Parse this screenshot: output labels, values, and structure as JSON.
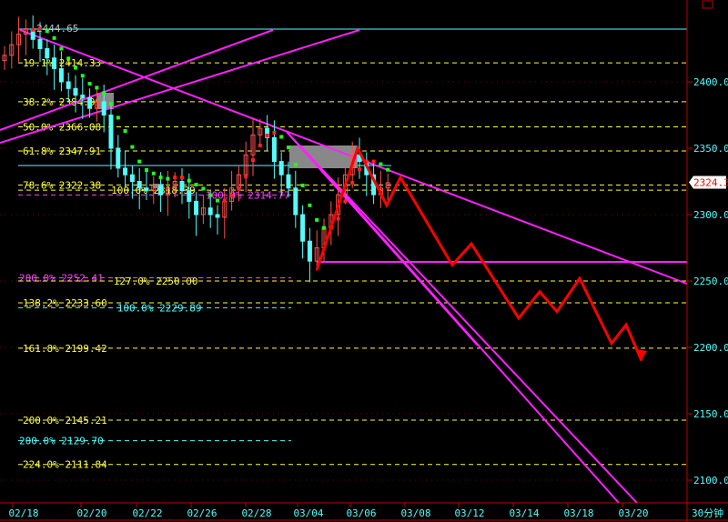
{
  "chart_data": {
    "type": "candlestick",
    "timeframe_label": "30分钟",
    "x_tick_labels": [
      "02/18",
      "02/20",
      "02/22",
      "02/26",
      "02/28",
      "03/04",
      "03/06",
      "03/08",
      "03/12",
      "03/14",
      "03/18",
      "03/20"
    ],
    "y_tick_labels": [
      "2400.0",
      "2350.0",
      "2300.0",
      "2250.0",
      "2200.0",
      "2150.0",
      "2100.0"
    ],
    "ylim": [
      2085,
      2460
    ],
    "current_price": "2324.3",
    "top_high_label": "2444.65",
    "closes": [
      2420,
      2428,
      2436,
      2440,
      2432,
      2425,
      2418,
      2410,
      2400,
      2395,
      2390,
      2388,
      2380,
      2385,
      2375,
      2350,
      2335,
      2330,
      2325,
      2320,
      2318,
      2322,
      2315,
      2320,
      2325,
      2318,
      2310,
      2300,
      2305,
      2300,
      2298,
      2310,
      2320,
      2330,
      2345,
      2360,
      2365,
      2358,
      2340,
      2330,
      2320,
      2300,
      2280,
      2265,
      2275,
      2290,
      2300,
      2315,
      2330,
      2345,
      2340,
      2330,
      2315,
      2320,
      2324
    ],
    "fib_levels": [
      {
        "label": "19.1% 2414.33",
        "price": 2414.33,
        "color": "#ffff40"
      },
      {
        "label": "38.2% 2384.99",
        "price": 2384.99,
        "color": "#ffff40"
      },
      {
        "label": "50.0% 2366.08",
        "price": 2366.08,
        "color": "#ffff40"
      },
      {
        "label": "61.8% 2347.91",
        "price": 2347.91,
        "color": "#ffff40"
      },
      {
        "label": "78.6% 2322.38",
        "price": 2322.38,
        "color": "#ffff40"
      },
      {
        "label": "100.0% 2318.39",
        "price": 2318.39,
        "color": "#ffff40"
      },
      {
        "label": "100.0% 2314.77",
        "price": 2314.77,
        "color": "#ff40ff"
      },
      {
        "label": "200.0% 2252.41",
        "price": 2252.41,
        "color": "#ff40ff"
      },
      {
        "label": "127.0% 2250.00",
        "price": 2250.0,
        "color": "#ffff40"
      },
      {
        "label": "138.2% 2233.60",
        "price": 2233.6,
        "color": "#ffff40"
      },
      {
        "label": "100.0% 2229.89",
        "price": 2229.89,
        "color": "#54fcfc"
      },
      {
        "label": "161.8% 2199.42",
        "price": 2199.42,
        "color": "#ffff40"
      },
      {
        "label": "200.0% 2145.21",
        "price": 2145.21,
        "color": "#ffff40"
      },
      {
        "label": "200.0% 2129.70",
        "price": 2129.7,
        "color": "#54fcfc"
      },
      {
        "label": "224.0% 2111.84",
        "price": 2111.84,
        "color": "#ffff40"
      }
    ],
    "forecast_path": [
      2258,
      2350,
      2307,
      2328,
      2262,
      2278,
      2222,
      2242,
      2227,
      2252,
      2203,
      2217,
      2190
    ],
    "colors": {
      "up": "#ff5050",
      "down": "#54fcfc",
      "axis": "#c00000",
      "trendline": "#ff20ff",
      "forecast": "#ff0000",
      "fib": "#ffff40"
    }
  }
}
